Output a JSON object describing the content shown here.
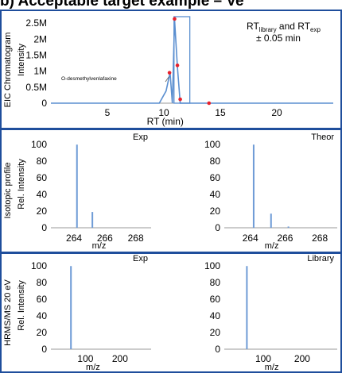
{
  "header": {
    "title": "b) Acceptable target example – Ve"
  },
  "sections": {
    "eic": "EIC Chromatogram",
    "isotopic": "Isotopic profile",
    "hrms": "HRMS/MS 20 eV"
  },
  "colors": {
    "line": "#5b8fd0",
    "bar": "#6e9bd6",
    "marker": "#e8202a",
    "border": "#1f4e9c",
    "window": "#5b8fd0"
  },
  "chart_data": [
    {
      "id": "eic",
      "type": "line",
      "xlabel": "RT (min)",
      "ylabel": "Intensity",
      "xlim": [
        0,
        25
      ],
      "ylim": [
        0,
        2700000
      ],
      "xticks": [
        5,
        10,
        15,
        20
      ],
      "xtick_labels": [
        "5",
        "10",
        "15",
        "20"
      ],
      "yticks": [
        0,
        500000,
        1000000,
        1500000,
        2000000,
        2500000
      ],
      "ytick_labels": [
        "0",
        "0.5M",
        "1M",
        "1.5M",
        "2M",
        "2.5M"
      ],
      "annotation": "O-desmethylvenlafaxine",
      "rt_label": "RT",
      "rt_sub_library": "library",
      "rt_and": " and RT",
      "rt_sub_exp": "exp",
      "tolerance": "± 0.05 min",
      "series": [
        {
          "x": [
            0,
            9.6,
            10.2,
            10.55,
            10.75,
            10.95,
            11.2,
            11.45,
            11.7,
            12.2,
            13,
            14,
            25
          ],
          "y": [
            0,
            0,
            380000,
            950000,
            0,
            2600000,
            1150000,
            0,
            0,
            0,
            0,
            0,
            0
          ]
        }
      ],
      "markers": [
        {
          "x": 10.5,
          "y": 950000
        },
        {
          "x": 10.95,
          "y": 2630000
        },
        {
          "x": 11.2,
          "y": 1180000
        },
        {
          "x": 11.45,
          "y": 120000
        },
        {
          "x": 14.0,
          "y": 0
        }
      ],
      "window": [
        10.9,
        12.3
      ]
    },
    {
      "id": "iso-exp",
      "type": "bar",
      "label": "Exp",
      "xlabel": "m/z",
      "ylabel": "Rel. Intensity",
      "xlim": [
        262.5,
        269
      ],
      "ylim": [
        0,
        105
      ],
      "xticks": [
        264,
        266,
        268
      ],
      "xtick_labels": [
        "264",
        "266",
        "268"
      ],
      "yticks": [
        0,
        20,
        40,
        60,
        80,
        100
      ],
      "ytick_labels": [
        "0",
        "20",
        "40",
        "60",
        "80",
        "100"
      ],
      "x": [
        264.19,
        265.19
      ],
      "values": [
        100,
        19
      ]
    },
    {
      "id": "iso-theor",
      "type": "bar",
      "label": "Theor",
      "xlabel": "m/z",
      "ylabel": "",
      "xlim": [
        262.5,
        269
      ],
      "ylim": [
        0,
        105
      ],
      "xticks": [
        264,
        266,
        268
      ],
      "xtick_labels": [
        "264",
        "266",
        "268"
      ],
      "yticks": [
        0,
        20,
        40,
        60,
        80,
        100
      ],
      "ytick_labels": [
        "0",
        "20",
        "40",
        "60",
        "80",
        "100"
      ],
      "x": [
        264.19,
        265.19,
        266.19
      ],
      "values": [
        100,
        17,
        1.5
      ]
    },
    {
      "id": "ms2-exp",
      "type": "bar",
      "label": "Exp",
      "xlabel": "m/z",
      "ylabel": "Rel. Intensity",
      "xlim": [
        0,
        290
      ],
      "ylim": [
        0,
        105
      ],
      "xticks": [
        100,
        200
      ],
      "xtick_labels": [
        "100",
        "200"
      ],
      "yticks": [
        0,
        20,
        40,
        60,
        80,
        100
      ],
      "ytick_labels": [
        "0",
        "20",
        "40",
        "60",
        "80",
        "100"
      ],
      "x": [
        58
      ],
      "values": [
        100
      ]
    },
    {
      "id": "ms2-library",
      "type": "bar",
      "label": "Library",
      "xlabel": "m/z",
      "ylabel": "",
      "xlim": [
        0,
        290
      ],
      "ylim": [
        0,
        105
      ],
      "xticks": [
        100,
        200
      ],
      "xtick_labels": [
        "100",
        "200"
      ],
      "yticks": [
        0,
        20,
        40,
        60,
        80,
        100
      ],
      "ytick_labels": [
        "0",
        "20",
        "40",
        "60",
        "80",
        "100"
      ],
      "x": [
        58
      ],
      "values": [
        100
      ]
    }
  ]
}
